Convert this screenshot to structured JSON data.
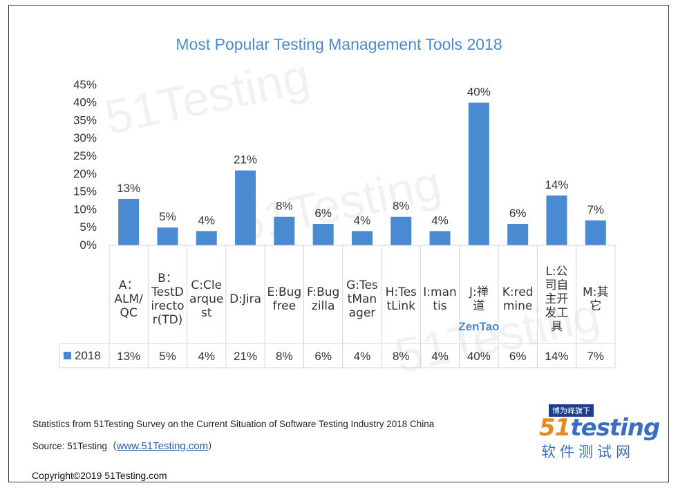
{
  "chart_data": {
    "type": "bar",
    "title": "Most Popular Testing Management Tools 2018",
    "categories": [
      [
        "A：",
        "ALM/",
        "QC"
      ],
      [
        "B：",
        "TestD",
        "irecto",
        "r(TD)"
      ],
      [
        "C:Cle",
        "arque",
        "st"
      ],
      [
        "D:Jira"
      ],
      [
        "E:Bug",
        "free"
      ],
      [
        "F:Bug",
        "zilla"
      ],
      [
        "G:Tes",
        "tMan",
        "ager"
      ],
      [
        "H:Tes",
        "tLink"
      ],
      [
        "I:man",
        "tis"
      ],
      [
        "J:禅",
        "道"
      ],
      [
        "K:red",
        "mine"
      ],
      [
        "L:公",
        "司自",
        "主开",
        "发工",
        "具"
      ],
      [
        "M:其",
        "它"
      ]
    ],
    "series": [
      {
        "name": "2018",
        "values": [
          13,
          5,
          4,
          21,
          8,
          6,
          4,
          8,
          4,
          40,
          6,
          14,
          7
        ]
      }
    ],
    "data_labels": [
      "13%",
      "5%",
      "4%",
      "21%",
      "8%",
      "6%",
      "4%",
      "8%",
      "4%",
      "40%",
      "6%",
      "14%",
      "7%"
    ],
    "y_ticks": [
      "0%",
      "5%",
      "10%",
      "15%",
      "20%",
      "25%",
      "30%",
      "35%",
      "40%",
      "45%"
    ],
    "ylim": [
      0,
      45
    ],
    "annotation": "ZenTao",
    "bar_color": "#4a8ad0",
    "legend_placement": "data-table-left",
    "grid": false
  },
  "watermarks": [
    "51Testing",
    "51Testing",
    "51Testing",
    "51Testing"
  ],
  "footer": {
    "stats_note": "Statistics from 51Testing Survey on the Current Situation of Software Testing Industry 2018 China",
    "source_prefix": "Source: 51Testing（",
    "source_link": "www.51Testing.com",
    "source_suffix": "）",
    "copyright": "Copyright©2019 51Testing.com"
  },
  "logo": {
    "badge": "博为峰旗下",
    "num": "51",
    "word": "testing",
    "cn": "软件测试网"
  }
}
